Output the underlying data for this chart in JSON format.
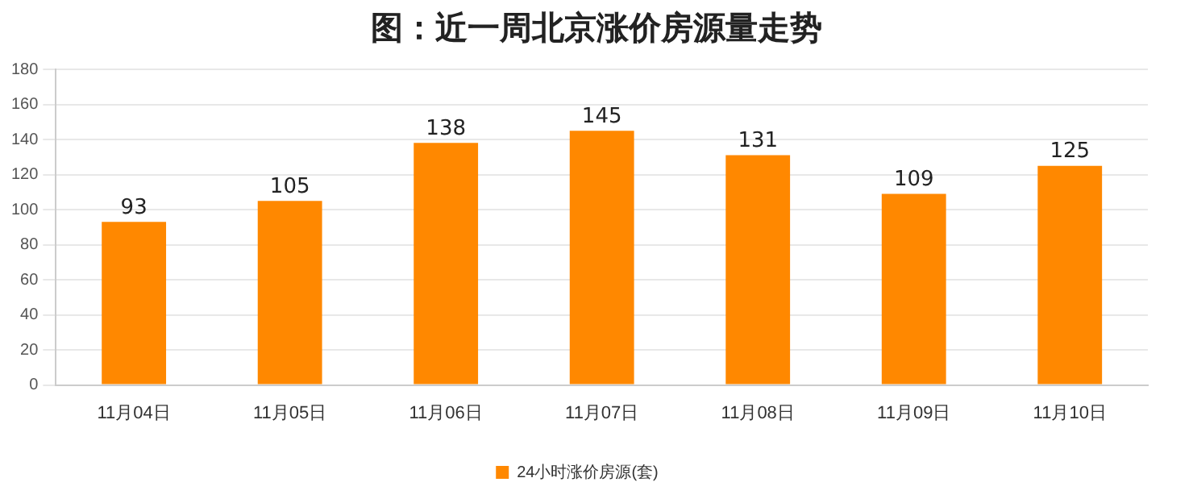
{
  "chart_data": {
    "type": "bar",
    "title": "图：近一周北京涨价房源量走势",
    "categories": [
      "11月04日",
      "11月05日",
      "11月06日",
      "11月07日",
      "11月08日",
      "11月09日",
      "11月10日"
    ],
    "series": [
      {
        "name": "24小时涨价房源(套)",
        "color": "#ff8800",
        "values": [
          93,
          105,
          138,
          145,
          131,
          109,
          125
        ]
      }
    ],
    "ylim": [
      0,
      180
    ],
    "yticks": [
      0,
      20,
      40,
      60,
      80,
      100,
      120,
      140,
      160,
      180
    ],
    "grid": "y",
    "legend": "bottom",
    "data_labels": true
  }
}
